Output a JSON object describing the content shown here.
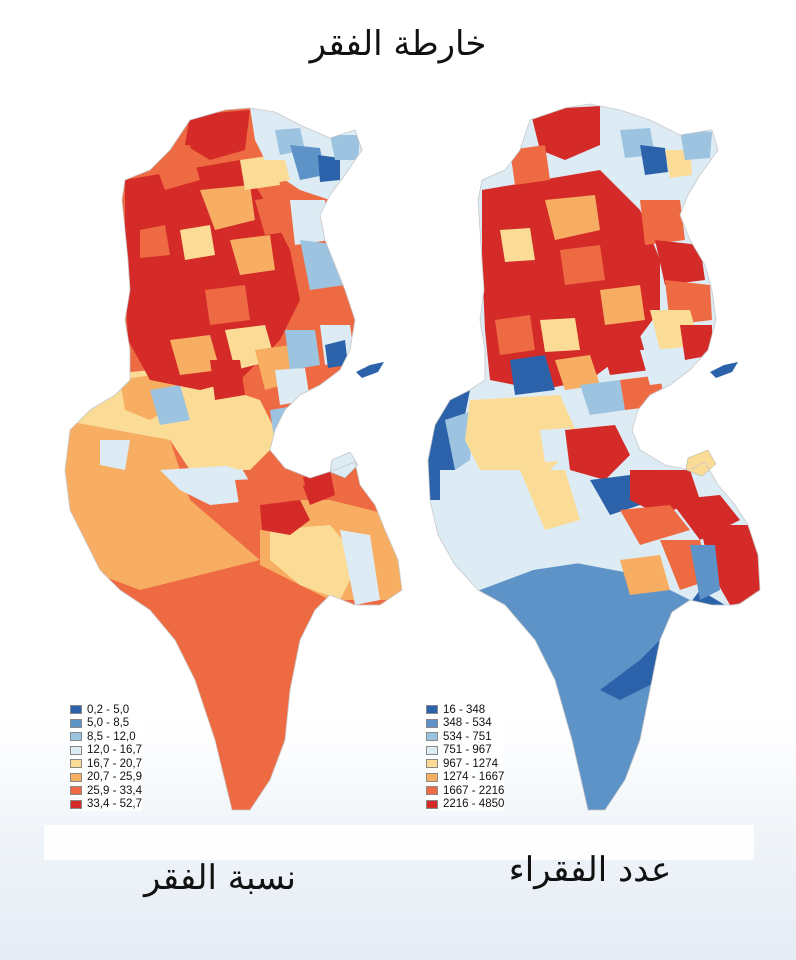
{
  "title": "خارطة الفقر",
  "maps": [
    {
      "caption": "نسبة الفقر",
      "legend": [
        {
          "label": "0,2 - 5,0",
          "color": "#2b62a9"
        },
        {
          "label": "5,0 - 8,5",
          "color": "#5d93c7"
        },
        {
          "label": "8,5 - 12,0",
          "color": "#9cc4e0"
        },
        {
          "label": "12,0 - 16,7",
          "color": "#ddebf5"
        },
        {
          "label": "16,7 - 20,7",
          "color": "#fbdc97"
        },
        {
          "label": "20,7 - 25,9",
          "color": "#f7ae62"
        },
        {
          "label": "25,9 - 33,4",
          "color": "#ee6a43"
        },
        {
          "label": "33,4 - 52,7",
          "color": "#d42a28"
        }
      ]
    },
    {
      "caption": "عدد الفقراء",
      "legend": [
        {
          "label": "16 - 348",
          "color": "#2b62a9"
        },
        {
          "label": "348 - 534",
          "color": "#5d93c7"
        },
        {
          "label": "534 - 751",
          "color": "#9cc4e0"
        },
        {
          "label": "751 - 967",
          "color": "#ddebf5"
        },
        {
          "label": "967 - 1274",
          "color": "#fbdc97"
        },
        {
          "label": "1274 - 1667",
          "color": "#f7ae62"
        },
        {
          "label": "1667 - 2216",
          "color": "#ee6a43"
        },
        {
          "label": "2216 - 4850",
          "color": "#d42a28"
        }
      ]
    }
  ]
}
